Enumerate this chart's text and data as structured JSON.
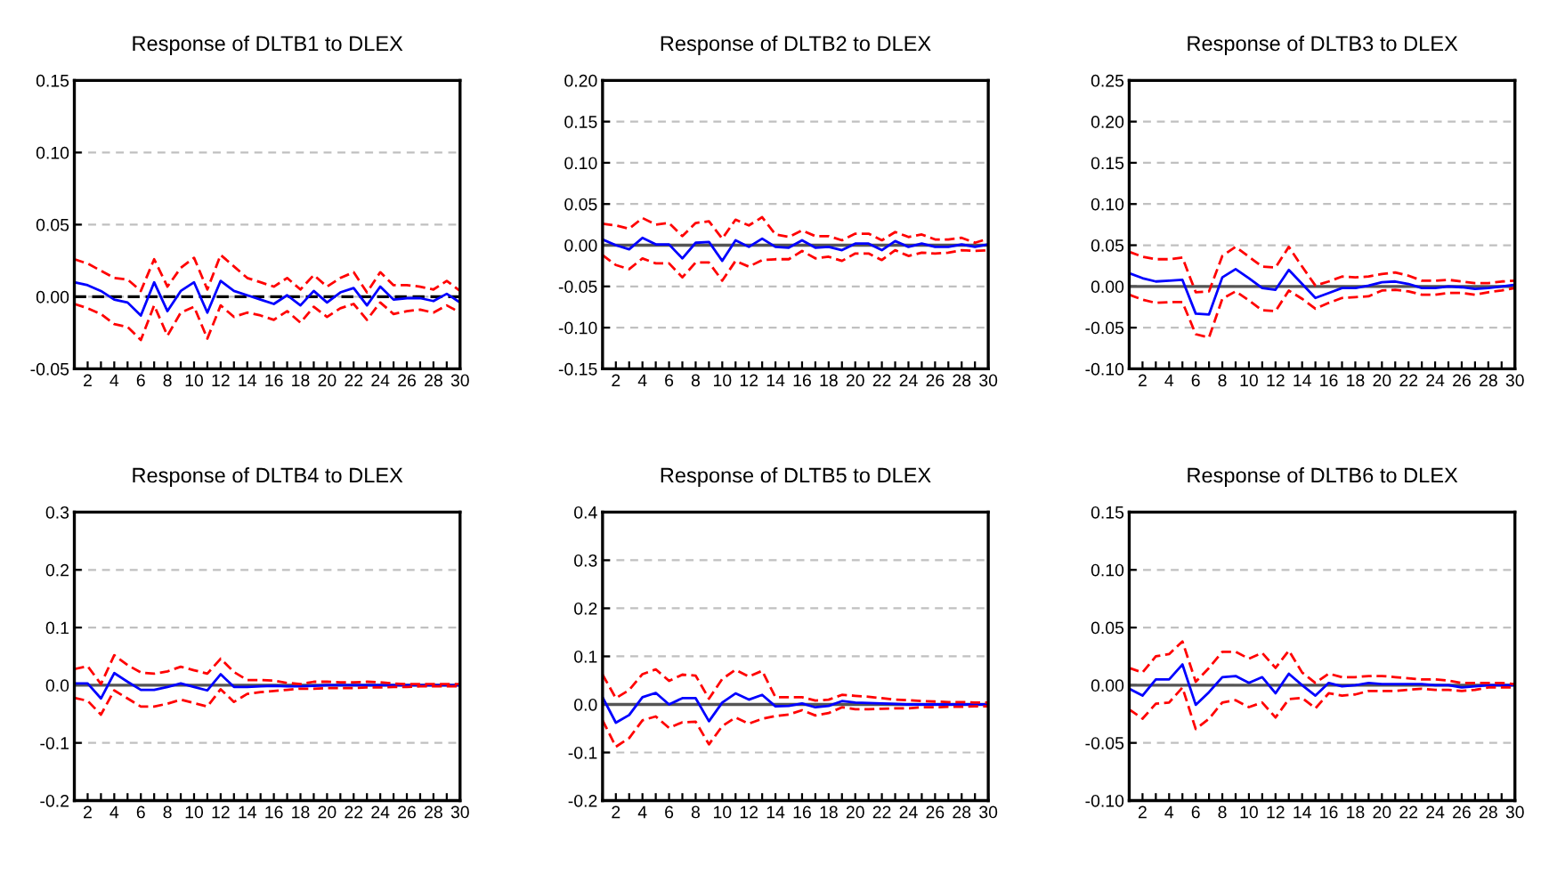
{
  "chart_data": [
    {
      "type": "line",
      "title": "Response of DLTB1 to DLEX",
      "x": [
        1,
        2,
        3,
        4,
        5,
        6,
        7,
        8,
        9,
        10,
        11,
        12,
        13,
        14,
        15,
        16,
        17,
        18,
        19,
        20,
        21,
        22,
        23,
        24,
        25,
        26,
        27,
        28,
        29,
        30
      ],
      "xlim": [
        1,
        30
      ],
      "xticks": [
        {
          "value": 1,
          "label": null
        },
        2,
        {
          "value": 3,
          "label": null
        },
        4,
        {
          "value": 5,
          "label": null
        },
        6,
        {
          "value": 7,
          "label": null
        },
        8,
        {
          "value": 9,
          "label": null
        },
        10,
        {
          "value": 11,
          "label": null
        },
        12,
        {
          "value": 13,
          "label": null
        },
        14,
        {
          "value": 15,
          "label": null
        },
        16,
        {
          "value": 17,
          "label": null
        },
        18,
        {
          "value": 19,
          "label": null
        },
        20,
        {
          "value": 21,
          "label": null
        },
        22,
        {
          "value": 23,
          "label": null
        },
        24,
        {
          "value": 25,
          "label": null
        },
        26,
        {
          "value": 27,
          "label": null
        },
        28,
        {
          "value": 29,
          "label": null
        },
        30
      ],
      "ylim": [
        -0.05,
        0.15
      ],
      "yticks": [
        {
          "value": -0.05,
          "label": "-0.05"
        },
        {
          "value": 0,
          "label": "0.00"
        },
        {
          "value": 0.05,
          "label": "0.05"
        },
        {
          "value": 0.1,
          "label": "0.10"
        },
        {
          "value": 0.15,
          "label": "0.15"
        }
      ],
      "grid": "y",
      "legend": false,
      "ref_lines": [
        {
          "axis": "y",
          "value": 0,
          "color": "#000000",
          "line_style": "dashed"
        }
      ],
      "series": [
        {
          "color": "#0000ff",
          "line_style": "solid",
          "values": [
            0.01,
            0.008,
            0.004,
            -0.002,
            -0.004,
            -0.013,
            0.01,
            -0.01,
            0.004,
            0.01,
            -0.011,
            0.011,
            0.004,
            0.001,
            -0.002,
            -0.005,
            0.001,
            -0.006,
            0.004,
            -0.004,
            0.003,
            0.006,
            -0.006,
            0.007,
            -0.002,
            -0.001,
            -0.001,
            -0.003,
            0.002,
            -0.004
          ]
        },
        {
          "color": "#ff0000",
          "line_style": "dashed",
          "values": [
            0.026,
            0.023,
            0.018,
            0.013,
            0.012,
            0.004,
            0.026,
            0.007,
            0.02,
            0.027,
            0.005,
            0.029,
            0.021,
            0.013,
            0.01,
            0.007,
            0.013,
            0.005,
            0.015,
            0.007,
            0.013,
            0.017,
            0.003,
            0.017,
            0.008,
            0.008,
            0.007,
            0.005,
            0.011,
            0.004
          ]
        },
        {
          "color": "#ff0000",
          "line_style": "dashed",
          "values": [
            -0.005,
            -0.008,
            -0.012,
            -0.019,
            -0.021,
            -0.03,
            -0.006,
            -0.027,
            -0.011,
            -0.007,
            -0.029,
            -0.006,
            -0.014,
            -0.011,
            -0.013,
            -0.016,
            -0.01,
            -0.018,
            -0.007,
            -0.014,
            -0.008,
            -0.005,
            -0.016,
            -0.004,
            -0.012,
            -0.01,
            -0.009,
            -0.011,
            -0.006,
            -0.011
          ]
        }
      ]
    },
    {
      "type": "line",
      "title": "Response of DLTB2 to DLEX",
      "x": [
        1,
        2,
        3,
        4,
        5,
        6,
        7,
        8,
        9,
        10,
        11,
        12,
        13,
        14,
        15,
        16,
        17,
        18,
        19,
        20,
        21,
        22,
        23,
        24,
        25,
        26,
        27,
        28,
        29,
        30
      ],
      "xlim": [
        1,
        30
      ],
      "xticks": [
        {
          "value": 1,
          "label": null
        },
        2,
        {
          "value": 3,
          "label": null
        },
        4,
        {
          "value": 5,
          "label": null
        },
        6,
        {
          "value": 7,
          "label": null
        },
        8,
        {
          "value": 9,
          "label": null
        },
        10,
        {
          "value": 11,
          "label": null
        },
        12,
        {
          "value": 13,
          "label": null
        },
        14,
        {
          "value": 15,
          "label": null
        },
        16,
        {
          "value": 17,
          "label": null
        },
        18,
        {
          "value": 19,
          "label": null
        },
        20,
        {
          "value": 21,
          "label": null
        },
        22,
        {
          "value": 23,
          "label": null
        },
        24,
        {
          "value": 25,
          "label": null
        },
        26,
        {
          "value": 27,
          "label": null
        },
        28,
        {
          "value": 29,
          "label": null
        },
        30
      ],
      "ylim": [
        -0.15,
        0.2
      ],
      "yticks": [
        {
          "value": -0.15,
          "label": "-0.15"
        },
        {
          "value": -0.1,
          "label": "-0.10"
        },
        {
          "value": -0.05,
          "label": "-0.05"
        },
        {
          "value": 0,
          "label": "0.00"
        },
        {
          "value": 0.05,
          "label": "0.05"
        },
        {
          "value": 0.1,
          "label": "0.10"
        },
        {
          "value": 0.15,
          "label": "0.15"
        },
        {
          "value": 0.2,
          "label": "0.20"
        }
      ],
      "grid": "y",
      "legend": false,
      "ref_lines": [
        {
          "axis": "y",
          "value": 0,
          "color": "#555555",
          "line_style": "solid"
        }
      ],
      "series": [
        {
          "color": "#0000ff",
          "line_style": "solid",
          "values": [
            0.007,
            0.0,
            -0.005,
            0.009,
            0.001,
            0.001,
            -0.016,
            0.003,
            0.004,
            -0.019,
            0.006,
            -0.002,
            0.008,
            -0.002,
            -0.003,
            0.006,
            -0.003,
            -0.002,
            -0.006,
            0.002,
            0.002,
            -0.006,
            0.005,
            -0.002,
            0.002,
            -0.002,
            -0.002,
            0.001,
            -0.002,
            0.001
          ]
        },
        {
          "color": "#ff0000",
          "line_style": "dashed",
          "values": [
            0.026,
            0.024,
            0.02,
            0.033,
            0.025,
            0.027,
            0.011,
            0.027,
            0.029,
            0.008,
            0.031,
            0.024,
            0.034,
            0.013,
            0.01,
            0.018,
            0.011,
            0.011,
            0.006,
            0.014,
            0.014,
            0.006,
            0.016,
            0.01,
            0.013,
            0.007,
            0.007,
            0.009,
            0.003,
            0.008
          ]
        },
        {
          "color": "#ff0000",
          "line_style": "dashed",
          "values": [
            -0.012,
            -0.024,
            -0.029,
            -0.016,
            -0.022,
            -0.022,
            -0.039,
            -0.021,
            -0.021,
            -0.043,
            -0.019,
            -0.026,
            -0.018,
            -0.017,
            -0.017,
            -0.007,
            -0.016,
            -0.014,
            -0.019,
            -0.01,
            -0.01,
            -0.018,
            -0.006,
            -0.013,
            -0.009,
            -0.01,
            -0.009,
            -0.006,
            -0.007,
            -0.006
          ]
        }
      ]
    },
    {
      "type": "line",
      "title": "Response of DLTB3 to DLEX",
      "x": [
        1,
        2,
        3,
        4,
        5,
        6,
        7,
        8,
        9,
        10,
        11,
        12,
        13,
        14,
        15,
        16,
        17,
        18,
        19,
        20,
        21,
        22,
        23,
        24,
        25,
        26,
        27,
        28,
        29,
        30
      ],
      "xlim": [
        1,
        30
      ],
      "xticks": [
        {
          "value": 1,
          "label": null
        },
        2,
        {
          "value": 3,
          "label": null
        },
        4,
        {
          "value": 5,
          "label": null
        },
        6,
        {
          "value": 7,
          "label": null
        },
        8,
        {
          "value": 9,
          "label": null
        },
        10,
        {
          "value": 11,
          "label": null
        },
        12,
        {
          "value": 13,
          "label": null
        },
        14,
        {
          "value": 15,
          "label": null
        },
        16,
        {
          "value": 17,
          "label": null
        },
        18,
        {
          "value": 19,
          "label": null
        },
        20,
        {
          "value": 21,
          "label": null
        },
        22,
        {
          "value": 23,
          "label": null
        },
        24,
        {
          "value": 25,
          "label": null
        },
        26,
        {
          "value": 27,
          "label": null
        },
        28,
        {
          "value": 29,
          "label": null
        },
        30
      ],
      "ylim": [
        -0.1,
        0.25
      ],
      "yticks": [
        {
          "value": -0.1,
          "label": "-0.10"
        },
        {
          "value": -0.05,
          "label": "-0.05"
        },
        {
          "value": 0,
          "label": "0.00"
        },
        {
          "value": 0.05,
          "label": "0.05"
        },
        {
          "value": 0.1,
          "label": "0.10"
        },
        {
          "value": 0.15,
          "label": "0.15"
        },
        {
          "value": 0.2,
          "label": "0.20"
        },
        {
          "value": 0.25,
          "label": "0.25"
        }
      ],
      "grid": "y",
      "legend": false,
      "ref_lines": [
        {
          "axis": "y",
          "value": 0,
          "color": "#555555",
          "line_style": "solid"
        }
      ],
      "series": [
        {
          "color": "#0000ff",
          "line_style": "solid",
          "values": [
            0.016,
            0.01,
            0.006,
            0.007,
            0.008,
            -0.033,
            -0.034,
            0.011,
            0.021,
            0.01,
            -0.002,
            -0.004,
            0.02,
            0.003,
            -0.014,
            -0.008,
            -0.002,
            -0.002,
            0.001,
            0.005,
            0.006,
            0.003,
            -0.002,
            -0.002,
            0.0,
            -0.001,
            -0.003,
            -0.002,
            0.0,
            0.002
          ]
        },
        {
          "color": "#ff0000",
          "line_style": "dashed",
          "values": [
            0.042,
            0.036,
            0.033,
            0.033,
            0.035,
            -0.007,
            -0.006,
            0.037,
            0.048,
            0.036,
            0.024,
            0.023,
            0.048,
            0.024,
            0.001,
            0.006,
            0.012,
            0.011,
            0.012,
            0.015,
            0.017,
            0.013,
            0.007,
            0.007,
            0.008,
            0.006,
            0.004,
            0.004,
            0.006,
            0.007
          ]
        },
        {
          "color": "#ff0000",
          "line_style": "dashed",
          "values": [
            -0.01,
            -0.016,
            -0.02,
            -0.019,
            -0.019,
            -0.058,
            -0.062,
            -0.015,
            -0.006,
            -0.017,
            -0.029,
            -0.03,
            -0.005,
            -0.015,
            -0.027,
            -0.02,
            -0.014,
            -0.013,
            -0.012,
            -0.005,
            -0.004,
            -0.006,
            -0.01,
            -0.01,
            -0.008,
            -0.008,
            -0.01,
            -0.007,
            -0.005,
            -0.002
          ]
        }
      ]
    },
    {
      "type": "line",
      "title": "Response of DLTB4 to DLEX",
      "x": [
        1,
        2,
        3,
        4,
        5,
        6,
        7,
        8,
        9,
        10,
        11,
        12,
        13,
        14,
        15,
        16,
        17,
        18,
        19,
        20,
        21,
        22,
        23,
        24,
        25,
        26,
        27,
        28,
        29,
        30
      ],
      "xlim": [
        1,
        30
      ],
      "xticks": [
        {
          "value": 1,
          "label": null
        },
        2,
        {
          "value": 3,
          "label": null
        },
        4,
        {
          "value": 5,
          "label": null
        },
        6,
        {
          "value": 7,
          "label": null
        },
        8,
        {
          "value": 9,
          "label": null
        },
        10,
        {
          "value": 11,
          "label": null
        },
        12,
        {
          "value": 13,
          "label": null
        },
        14,
        {
          "value": 15,
          "label": null
        },
        16,
        {
          "value": 17,
          "label": null
        },
        18,
        {
          "value": 19,
          "label": null
        },
        20,
        {
          "value": 21,
          "label": null
        },
        22,
        {
          "value": 23,
          "label": null
        },
        24,
        {
          "value": 25,
          "label": null
        },
        26,
        {
          "value": 27,
          "label": null
        },
        28,
        {
          "value": 29,
          "label": null
        },
        30
      ],
      "ylim": [
        -0.2,
        0.3
      ],
      "yticks": [
        {
          "value": -0.2,
          "label": "-0.2"
        },
        {
          "value": -0.1,
          "label": "-0.1"
        },
        {
          "value": 0,
          "label": "0.0"
        },
        {
          "value": 0.1,
          "label": "0.1"
        },
        {
          "value": 0.2,
          "label": "0.2"
        },
        {
          "value": 0.3,
          "label": "0.3"
        }
      ],
      "grid": "y",
      "legend": false,
      "ref_lines": [
        {
          "axis": "y",
          "value": 0,
          "color": "#555555",
          "line_style": "solid"
        }
      ],
      "series": [
        {
          "color": "#0000ff",
          "line_style": "solid",
          "values": [
            0.003,
            0.003,
            -0.023,
            0.021,
            0.006,
            -0.008,
            -0.008,
            -0.003,
            0.003,
            -0.003,
            -0.009,
            0.019,
            -0.003,
            -0.003,
            -0.002,
            -0.001,
            -0.002,
            -0.002,
            -0.001,
            0.0,
            0.0,
            0.0,
            0.0,
            0.0,
            0.0,
            0.0,
            0.0,
            0.0,
            0.0,
            0.0
          ]
        },
        {
          "color": "#ff0000",
          "line_style": "dashed",
          "values": [
            0.028,
            0.033,
            0.002,
            0.052,
            0.035,
            0.022,
            0.02,
            0.024,
            0.032,
            0.026,
            0.02,
            0.046,
            0.023,
            0.009,
            0.009,
            0.008,
            0.004,
            0.002,
            0.006,
            0.006,
            0.005,
            0.005,
            0.006,
            0.005,
            0.003,
            0.002,
            0.002,
            0.002,
            0.002,
            0.002
          ]
        },
        {
          "color": "#ff0000",
          "line_style": "dashed",
          "values": [
            -0.022,
            -0.027,
            -0.051,
            -0.009,
            -0.023,
            -0.037,
            -0.037,
            -0.032,
            -0.025,
            -0.031,
            -0.037,
            -0.007,
            -0.029,
            -0.015,
            -0.012,
            -0.01,
            -0.008,
            -0.006,
            -0.006,
            -0.005,
            -0.005,
            -0.005,
            -0.004,
            -0.004,
            -0.003,
            -0.003,
            -0.002,
            -0.002,
            -0.002,
            -0.002
          ]
        }
      ]
    },
    {
      "type": "line",
      "title": "Response of DLTB5 to DLEX",
      "x": [
        1,
        2,
        3,
        4,
        5,
        6,
        7,
        8,
        9,
        10,
        11,
        12,
        13,
        14,
        15,
        16,
        17,
        18,
        19,
        20,
        21,
        22,
        23,
        24,
        25,
        26,
        27,
        28,
        29,
        30
      ],
      "xlim": [
        1,
        30
      ],
      "xticks": [
        {
          "value": 1,
          "label": null
        },
        2,
        {
          "value": 3,
          "label": null
        },
        4,
        {
          "value": 5,
          "label": null
        },
        6,
        {
          "value": 7,
          "label": null
        },
        8,
        {
          "value": 9,
          "label": null
        },
        10,
        {
          "value": 11,
          "label": null
        },
        12,
        {
          "value": 13,
          "label": null
        },
        14,
        {
          "value": 15,
          "label": null
        },
        16,
        {
          "value": 17,
          "label": null
        },
        18,
        {
          "value": 19,
          "label": null
        },
        20,
        {
          "value": 21,
          "label": null
        },
        22,
        {
          "value": 23,
          "label": null
        },
        24,
        {
          "value": 25,
          "label": null
        },
        26,
        {
          "value": 27,
          "label": null
        },
        28,
        {
          "value": 29,
          "label": null
        },
        30
      ],
      "ylim": [
        -0.2,
        0.4
      ],
      "yticks": [
        {
          "value": -0.2,
          "label": "-0.2"
        },
        {
          "value": -0.1,
          "label": "-0.1"
        },
        {
          "value": 0,
          "label": "0.0"
        },
        {
          "value": 0.1,
          "label": "0.1"
        },
        {
          "value": 0.2,
          "label": "0.2"
        },
        {
          "value": 0.3,
          "label": "0.3"
        },
        {
          "value": 0.4,
          "label": "0.4"
        }
      ],
      "grid": "y",
      "legend": false,
      "ref_lines": [
        {
          "axis": "y",
          "value": 0,
          "color": "#555555",
          "line_style": "solid"
        }
      ],
      "series": [
        {
          "color": "#0000ff",
          "line_style": "solid",
          "values": [
            0.015,
            -0.038,
            -0.022,
            0.015,
            0.024,
            0.0,
            0.013,
            0.013,
            -0.035,
            0.004,
            0.023,
            0.01,
            0.02,
            -0.004,
            -0.003,
            0.002,
            -0.006,
            -0.003,
            0.007,
            0.004,
            0.003,
            0.002,
            0.001,
            0.0,
            0.0,
            0.0,
            0.0,
            0.0,
            0.0,
            0.0
          ]
        },
        {
          "color": "#ff0000",
          "line_style": "dashed",
          "values": [
            0.062,
            0.013,
            0.03,
            0.063,
            0.073,
            0.049,
            0.062,
            0.06,
            0.012,
            0.053,
            0.072,
            0.058,
            0.07,
            0.015,
            0.015,
            0.015,
            0.008,
            0.01,
            0.02,
            0.018,
            0.016,
            0.013,
            0.01,
            0.009,
            0.007,
            0.006,
            0.005,
            0.005,
            0.004,
            0.004
          ]
        },
        {
          "color": "#ff0000",
          "line_style": "dashed",
          "values": [
            -0.033,
            -0.088,
            -0.07,
            -0.033,
            -0.025,
            -0.049,
            -0.037,
            -0.036,
            -0.083,
            -0.045,
            -0.027,
            -0.04,
            -0.03,
            -0.024,
            -0.021,
            -0.012,
            -0.023,
            -0.018,
            -0.006,
            -0.01,
            -0.01,
            -0.009,
            -0.008,
            -0.008,
            -0.006,
            -0.006,
            -0.005,
            -0.005,
            -0.004,
            -0.004
          ]
        }
      ]
    },
    {
      "type": "line",
      "title": "Response of DLTB6 to DLEX",
      "x": [
        1,
        2,
        3,
        4,
        5,
        6,
        7,
        8,
        9,
        10,
        11,
        12,
        13,
        14,
        15,
        16,
        17,
        18,
        19,
        20,
        21,
        22,
        23,
        24,
        25,
        26,
        27,
        28,
        29,
        30
      ],
      "xlim": [
        1,
        30
      ],
      "xticks": [
        {
          "value": 1,
          "label": null
        },
        2,
        {
          "value": 3,
          "label": null
        },
        4,
        {
          "value": 5,
          "label": null
        },
        6,
        {
          "value": 7,
          "label": null
        },
        8,
        {
          "value": 9,
          "label": null
        },
        10,
        {
          "value": 11,
          "label": null
        },
        12,
        {
          "value": 13,
          "label": null
        },
        14,
        {
          "value": 15,
          "label": null
        },
        16,
        {
          "value": 17,
          "label": null
        },
        18,
        {
          "value": 19,
          "label": null
        },
        20,
        {
          "value": 21,
          "label": null
        },
        22,
        {
          "value": 23,
          "label": null
        },
        24,
        {
          "value": 25,
          "label": null
        },
        26,
        {
          "value": 27,
          "label": null
        },
        28,
        {
          "value": 29,
          "label": null
        },
        30
      ],
      "ylim": [
        -0.1,
        0.15
      ],
      "yticks": [
        {
          "value": -0.1,
          "label": "-0.10"
        },
        {
          "value": -0.05,
          "label": "-0.05"
        },
        {
          "value": 0,
          "label": "0.00"
        },
        {
          "value": 0.05,
          "label": "0.05"
        },
        {
          "value": 0.1,
          "label": "0.10"
        },
        {
          "value": 0.15,
          "label": "0.15"
        }
      ],
      "grid": "y",
      "legend": false,
      "ref_lines": [
        {
          "axis": "y",
          "value": 0,
          "color": "#555555",
          "line_style": "solid"
        }
      ],
      "series": [
        {
          "color": "#0000ff",
          "line_style": "solid",
          "values": [
            -0.003,
            -0.009,
            0.005,
            0.005,
            0.018,
            -0.017,
            -0.006,
            0.007,
            0.008,
            0.002,
            0.007,
            -0.007,
            0.01,
            0.0,
            -0.009,
            0.002,
            -0.001,
            0.0,
            0.002,
            0.001,
            0.001,
            0.001,
            0.001,
            0.0,
            0.0,
            -0.002,
            -0.001,
            0.0,
            0.0,
            0.0
          ]
        },
        {
          "color": "#ff0000",
          "line_style": "dashed",
          "values": [
            0.015,
            0.011,
            0.025,
            0.027,
            0.038,
            0.003,
            0.015,
            0.029,
            0.029,
            0.023,
            0.028,
            0.015,
            0.03,
            0.011,
            0.002,
            0.01,
            0.007,
            0.007,
            0.008,
            0.008,
            0.007,
            0.006,
            0.005,
            0.005,
            0.004,
            0.002,
            0.002,
            0.002,
            0.002,
            0.001
          ]
        },
        {
          "color": "#ff0000",
          "line_style": "dashed",
          "values": [
            -0.021,
            -0.029,
            -0.016,
            -0.015,
            -0.002,
            -0.038,
            -0.029,
            -0.015,
            -0.013,
            -0.019,
            -0.015,
            -0.028,
            -0.012,
            -0.011,
            -0.02,
            -0.007,
            -0.009,
            -0.008,
            -0.005,
            -0.005,
            -0.005,
            -0.004,
            -0.003,
            -0.004,
            -0.004,
            -0.005,
            -0.004,
            -0.002,
            -0.002,
            -0.002
          ]
        }
      ]
    }
  ]
}
